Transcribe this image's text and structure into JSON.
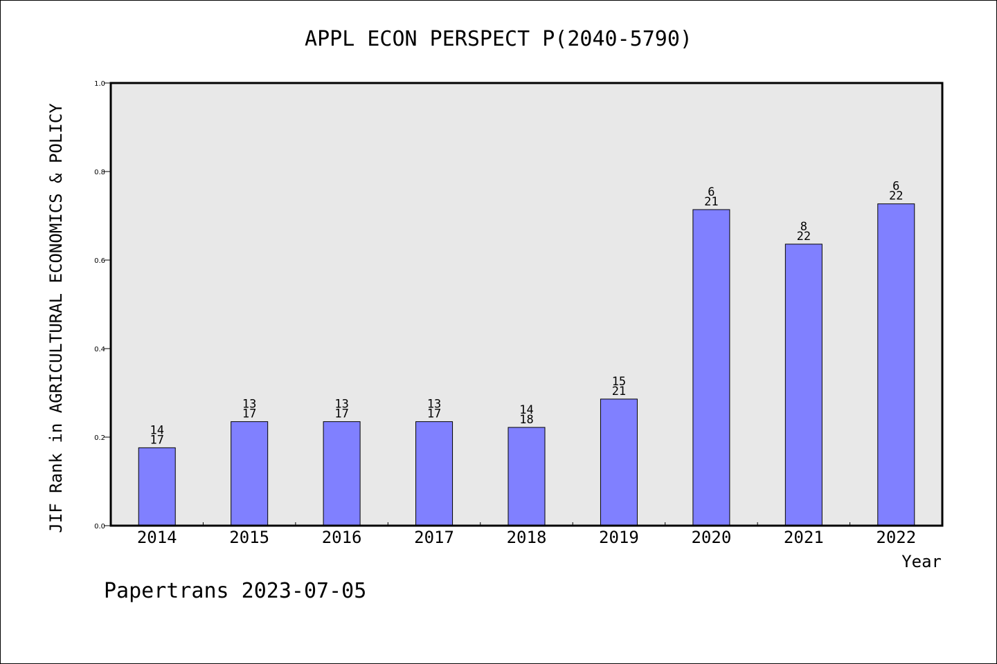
{
  "chart_data": {
    "type": "bar",
    "title": "APPL ECON PERSPECT P(2040-5790)",
    "xlabel": "Year",
    "ylabel": "JIF Rank in AGRICULTURAL ECONOMICS & POLICY",
    "ylim": [
      0,
      1.0
    ],
    "yticks": [
      "0.0",
      "0.2",
      "0.4",
      "0.6",
      "0.8",
      "1.0"
    ],
    "categories": [
      "2014",
      "2015",
      "2016",
      "2017",
      "2018",
      "2019",
      "2020",
      "2021",
      "2022"
    ],
    "values": [
      0.176,
      0.235,
      0.235,
      0.235,
      0.222,
      0.286,
      0.714,
      0.636,
      0.727
    ],
    "labels": [
      {
        "rank": "14",
        "total": "17"
      },
      {
        "rank": "13",
        "total": "17"
      },
      {
        "rank": "13",
        "total": "17"
      },
      {
        "rank": "13",
        "total": "17"
      },
      {
        "rank": "14",
        "total": "18"
      },
      {
        "rank": "15",
        "total": "21"
      },
      {
        "rank": "6",
        "total": "21"
      },
      {
        "rank": "8",
        "total": "22"
      },
      {
        "rank": "6",
        "total": "22"
      }
    ],
    "bar_color": "#8080ff",
    "plot_background": "#e8e8e8",
    "grid": false,
    "legend": "none"
  },
  "footer": "Papertrans 2023-07-05"
}
